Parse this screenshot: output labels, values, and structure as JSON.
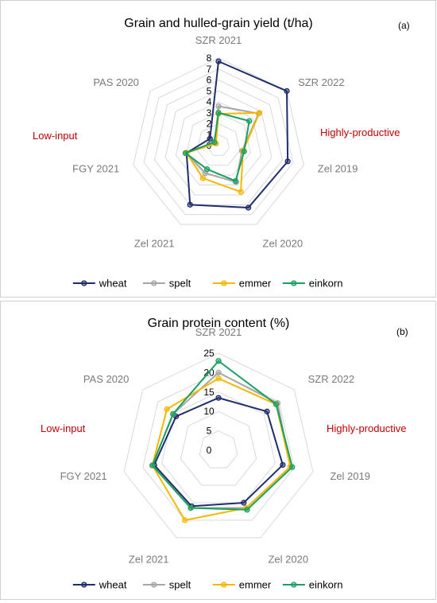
{
  "chart_data": [
    {
      "type": "radar",
      "title": "Grain and hulled-grain yield (t/ha)",
      "panel_label": "(a)",
      "axes": [
        "SZR 2021",
        "SZR 2022",
        "Zel 2019",
        "Zel 2020",
        "Zel 2021",
        "FGY 2021",
        "PAS 2020"
      ],
      "rlim": [
        0,
        8
      ],
      "ticks": [
        "0",
        "1",
        "2",
        "3",
        "4",
        "5",
        "6",
        "7",
        "8"
      ],
      "side_labels": {
        "left": "Low-input",
        "right": "Highly-productive"
      },
      "legend_position": "bottom",
      "series": [
        {
          "name": "wheat",
          "color": "#1f2d6b",
          "values": [
            7.7,
            8.0,
            6.5,
            6.3,
            6.0,
            3.0,
            1.0
          ]
        },
        {
          "name": "spelt",
          "color": "#a6a6a6",
          "values": [
            3.6,
            4.7,
            2.2,
            3.7,
            2.8,
            3.0,
            0.4
          ]
        },
        {
          "name": "emmer",
          "color": "#f5b800",
          "values": [
            2.9,
            4.8,
            2.3,
            4.7,
            3.3,
            3.0,
            0.3
          ]
        },
        {
          "name": "einkorn",
          "color": "#1aa060",
          "values": [
            3.0,
            3.6,
            2.4,
            3.6,
            2.4,
            3.1,
            0.5
          ]
        }
      ]
    },
    {
      "type": "radar",
      "title": "Grain protein content (%)",
      "panel_label": "(b)",
      "axes": [
        "SZR 2021",
        "SZR 2022",
        "Zel 2019",
        "Zel 2020",
        "Zel 2021",
        "FGY 2021",
        "PAS 2020"
      ],
      "rlim": [
        0,
        25
      ],
      "ticks": [
        "0",
        "5",
        "10",
        "15",
        "20",
        "25"
      ],
      "side_labels": {
        "left": "Low-input",
        "right": "Highly-productive"
      },
      "legend_position": "bottom",
      "series": [
        {
          "name": "wheat",
          "color": "#1f2d6b",
          "values": [
            13.5,
            16.0,
            17.0,
            15.0,
            16.0,
            17.0,
            14.0
          ]
        },
        {
          "name": "spelt",
          "color": "#a6a6a6",
          "values": [
            20.0,
            19.5,
            19.0,
            16.5,
            16.5,
            17.5,
            15.0
          ]
        },
        {
          "name": "emmer",
          "color": "#f5b800",
          "values": [
            18.5,
            19.0,
            19.0,
            16.5,
            20.0,
            17.5,
            17.0
          ]
        },
        {
          "name": "einkorn",
          "color": "#1aa060",
          "values": [
            23.0,
            19.0,
            19.5,
            17.0,
            16.5,
            17.5,
            15.0
          ]
        }
      ]
    }
  ]
}
